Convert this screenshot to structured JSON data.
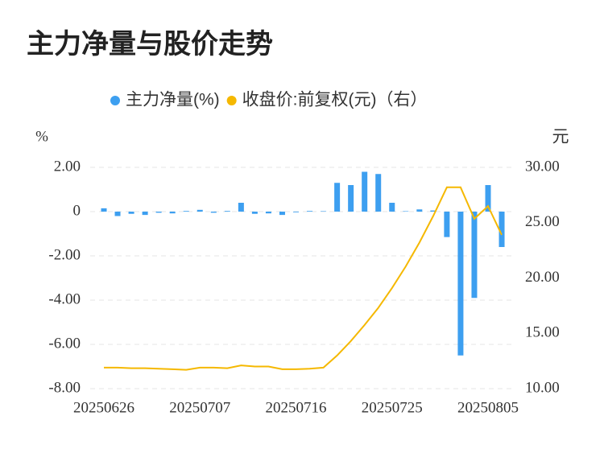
{
  "chart_data": {
    "type": "bar_line",
    "title": "主力净量与股价走势",
    "y_label": "%",
    "y2_label": "元",
    "categories": [
      "20250626",
      null,
      null,
      null,
      null,
      null,
      null,
      "20250707",
      null,
      null,
      null,
      null,
      null,
      null,
      "20250716",
      null,
      null,
      null,
      null,
      null,
      null,
      "20250725",
      null,
      null,
      null,
      null,
      null,
      null,
      "20250805",
      null
    ],
    "series": [
      {
        "name": "主力净量(%)",
        "type": "bar",
        "color": "#3d9ff0",
        "values": [
          0.15,
          -0.2,
          -0.1,
          -0.15,
          -0.05,
          -0.08,
          0.03,
          0.08,
          -0.05,
          0.03,
          0.4,
          -0.1,
          -0.08,
          -0.15,
          -0.03,
          0.03,
          0.02,
          1.3,
          1.2,
          1.8,
          1.7,
          0.4,
          0.02,
          0.1,
          0.05,
          -1.15,
          -6.5,
          -3.9,
          1.2,
          -1.6
        ]
      },
      {
        "name": "收盘价:前复权(元)（右）",
        "type": "line",
        "axis": "y2",
        "color": "#f5b800",
        "values": [
          11.9,
          11.9,
          11.85,
          11.85,
          11.8,
          11.75,
          11.7,
          11.9,
          11.9,
          11.85,
          12.1,
          12.0,
          12.0,
          11.75,
          11.75,
          11.8,
          11.9,
          13.0,
          14.3,
          15.75,
          17.3,
          19.1,
          21.05,
          23.2,
          25.6,
          28.2,
          28.2,
          25.35,
          26.5,
          23.9
        ]
      }
    ],
    "ylim": [
      -8,
      2
    ],
    "yticks": [
      {
        "value": 2,
        "label": "2.00"
      },
      0,
      {
        "value": -2,
        "label": "-2.00"
      },
      {
        "value": -4,
        "label": "-4.00"
      },
      {
        "value": -6,
        "label": "-6.00"
      },
      {
        "value": -8,
        "label": "-8.00"
      }
    ],
    "y2lim": [
      10,
      30
    ],
    "y2ticks": [
      {
        "value": 30,
        "label": "30.00"
      },
      {
        "value": 25,
        "label": "25.00"
      },
      {
        "value": 20,
        "label": "20.00"
      },
      {
        "value": 15,
        "label": "15.00"
      },
      {
        "value": 10,
        "label": "10.00"
      }
    ],
    "grid": true,
    "legend": "top"
  }
}
